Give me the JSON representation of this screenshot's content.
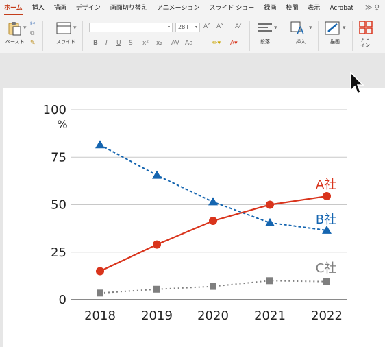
{
  "ribbon": {
    "tabs": [
      {
        "label": "ホーム",
        "active": true
      },
      {
        "label": "挿入"
      },
      {
        "label": "描画"
      },
      {
        "label": "デザイン"
      },
      {
        "label": "画面切り替え"
      },
      {
        "label": "アニメーション"
      },
      {
        "label": "スライド ショー"
      },
      {
        "label": "録画"
      },
      {
        "label": "校閲"
      },
      {
        "label": "表示"
      },
      {
        "label": "Acrobat"
      }
    ],
    "more": "≫ ♀",
    "groups": {
      "paste": "ペースト",
      "slide": "スライド",
      "paragraph": "段落",
      "insert": "挿入",
      "draw": "描画",
      "addin": "アド\nイン"
    },
    "font_size": "28+",
    "font_name": ""
  },
  "chart_data": {
    "type": "line",
    "categories": [
      "2018",
      "2019",
      "2020",
      "2021",
      "2022"
    ],
    "ylim": [
      0,
      100
    ],
    "yticks": [
      "0",
      "25",
      "50",
      "75",
      "100"
    ],
    "yunit": "%",
    "grid": true,
    "series": [
      {
        "name": "A社",
        "values": [
          15,
          29,
          41.5,
          50,
          54.5
        ],
        "color": "#d9341c",
        "marker": "circle",
        "dash": "solid"
      },
      {
        "name": "B社",
        "values": [
          81.5,
          65.5,
          51.5,
          40.5,
          36.5
        ],
        "color": "#1565b0",
        "marker": "triangle",
        "dash": "dashed"
      },
      {
        "name": "C社",
        "values": [
          3.5,
          5.5,
          7,
          10,
          9.5
        ],
        "color": "#7f7f7f",
        "marker": "square",
        "dash": "dotted"
      }
    ]
  }
}
